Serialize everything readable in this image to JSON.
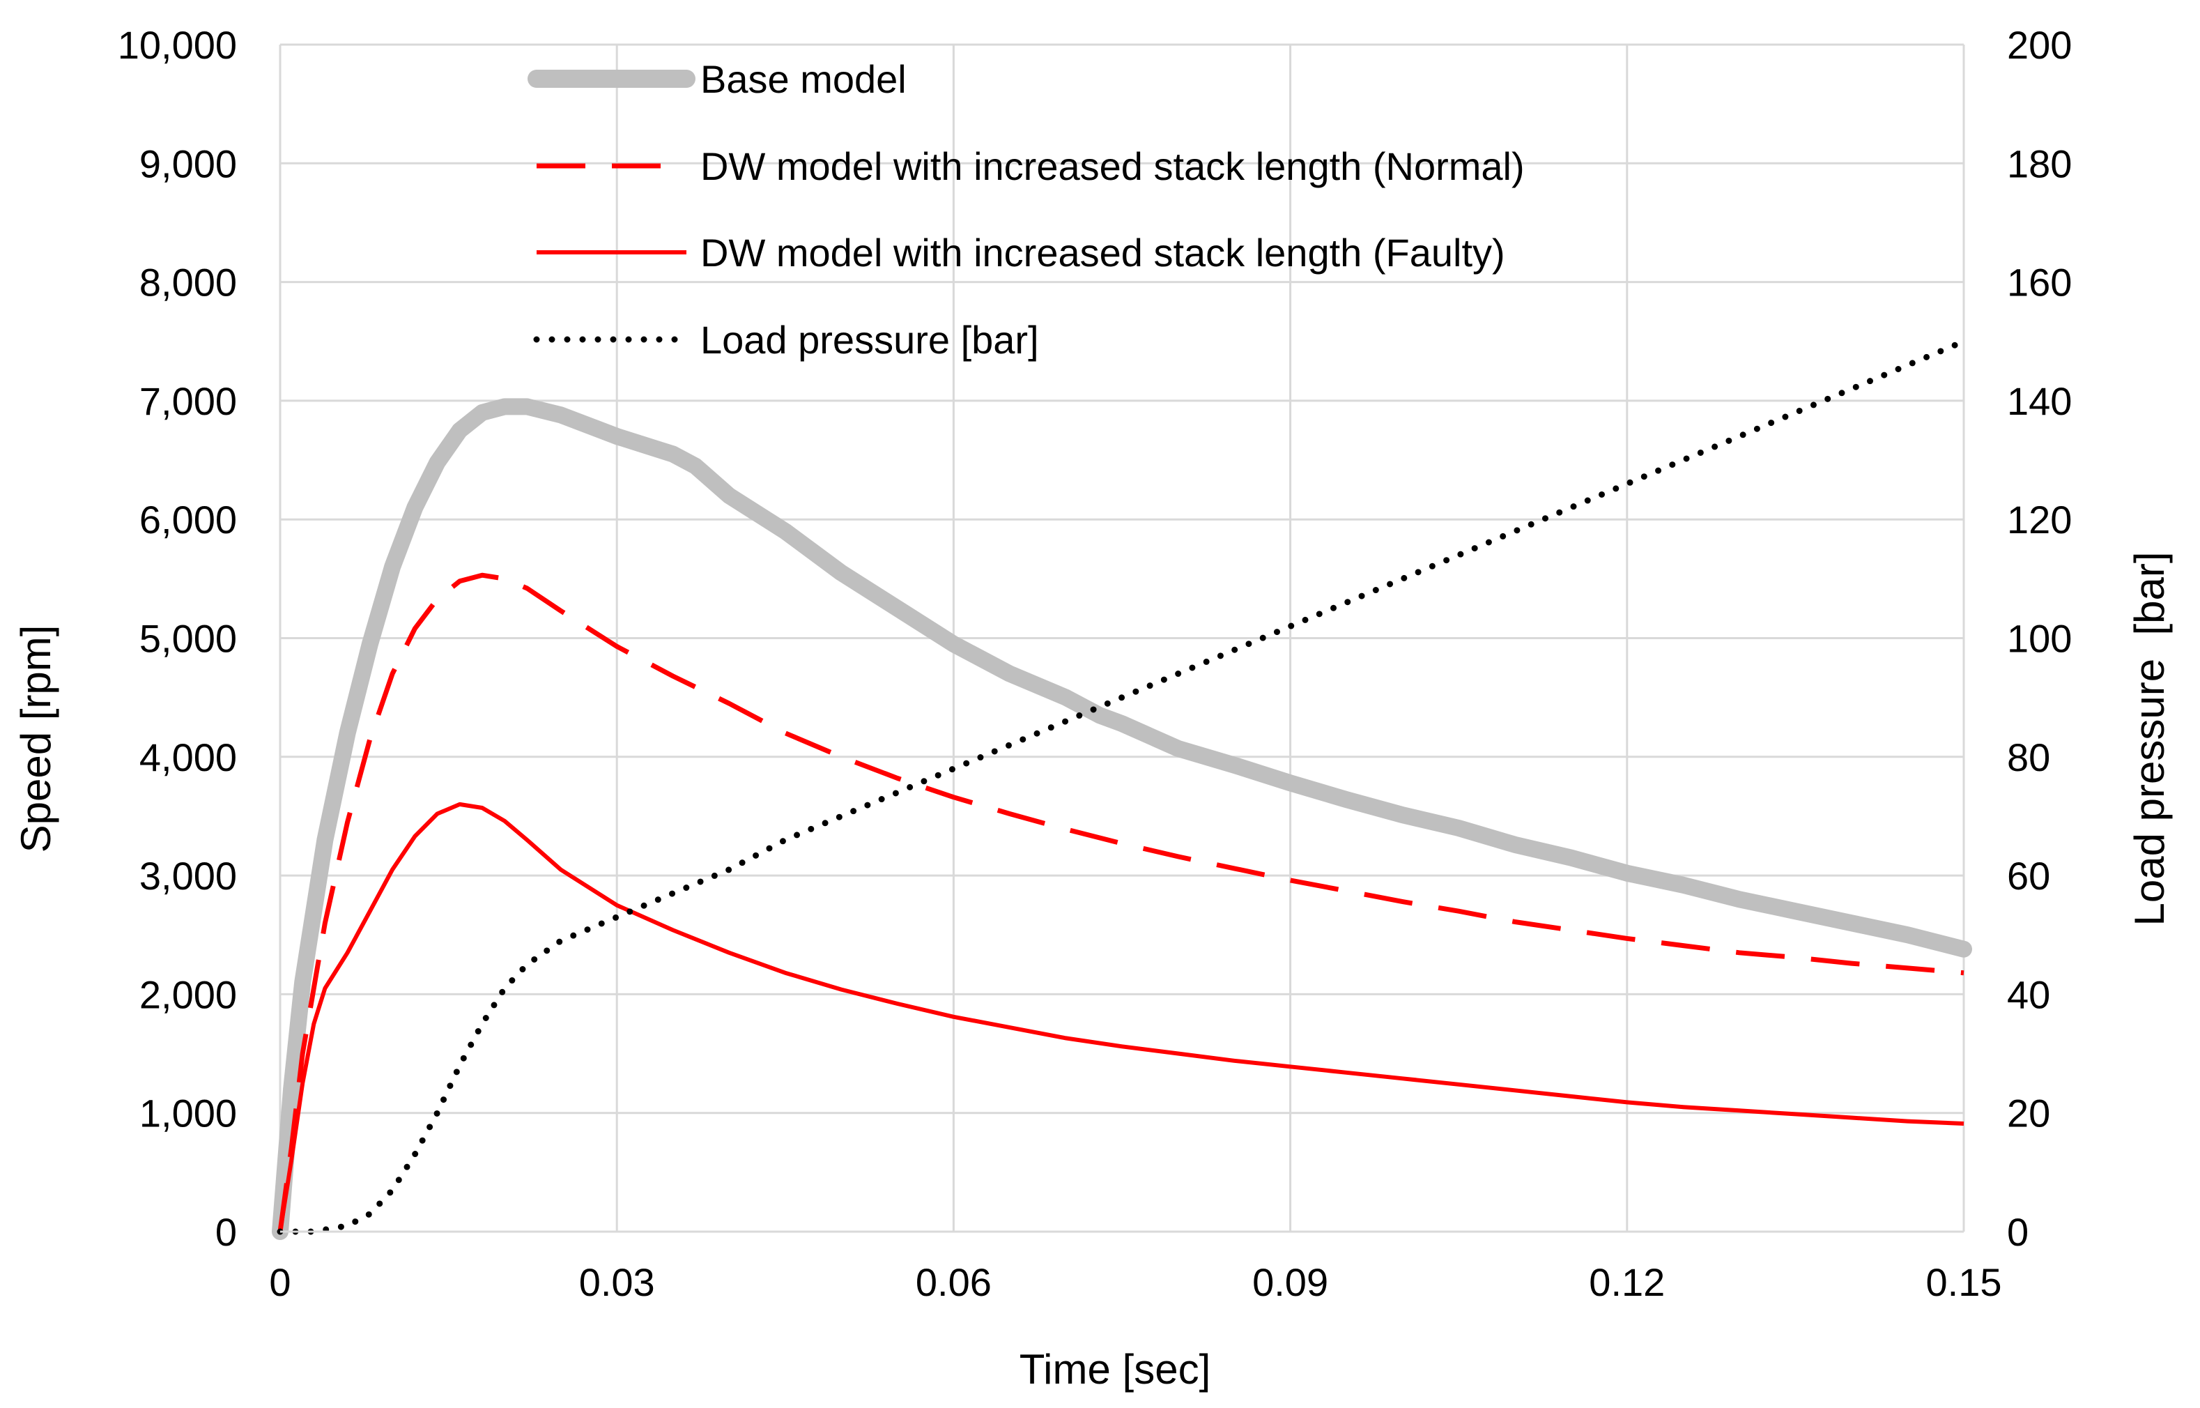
{
  "chart_data": {
    "type": "line",
    "title": "",
    "xlabel": "Time [sec]",
    "ylabel": "Speed [rpm]",
    "y2label": "Load pressure  [bar]",
    "xlim": [
      0,
      0.15
    ],
    "ylim": [
      0,
      10000
    ],
    "y2lim": [
      0,
      200
    ],
    "grid": true,
    "legend_position": "top-center",
    "x_ticks": [
      {
        "v": 0,
        "label": "0"
      },
      {
        "v": 0.03,
        "label": "0.03"
      },
      {
        "v": 0.06,
        "label": "0.06"
      },
      {
        "v": 0.09,
        "label": "0.09"
      },
      {
        "v": 0.12,
        "label": "0.12"
      },
      {
        "v": 0.15,
        "label": "0.15"
      }
    ],
    "y_ticks": [
      {
        "v": 0,
        "label": "0"
      },
      {
        "v": 1000,
        "label": "1,000"
      },
      {
        "v": 2000,
        "label": "2,000"
      },
      {
        "v": 3000,
        "label": "3,000"
      },
      {
        "v": 4000,
        "label": "4,000"
      },
      {
        "v": 5000,
        "label": "5,000"
      },
      {
        "v": 6000,
        "label": "6,000"
      },
      {
        "v": 7000,
        "label": "7,000"
      },
      {
        "v": 8000,
        "label": "8,000"
      },
      {
        "v": 9000,
        "label": "9,000"
      },
      {
        "v": 10000,
        "label": "10,000"
      }
    ],
    "y2_ticks": [
      {
        "v": 0,
        "label": "0"
      },
      {
        "v": 20,
        "label": "20"
      },
      {
        "v": 40,
        "label": "40"
      },
      {
        "v": 60,
        "label": "60"
      },
      {
        "v": 80,
        "label": "80"
      },
      {
        "v": 100,
        "label": "100"
      },
      {
        "v": 120,
        "label": "120"
      },
      {
        "v": 140,
        "label": "140"
      },
      {
        "v": 160,
        "label": "160"
      },
      {
        "v": 180,
        "label": "180"
      },
      {
        "v": 200,
        "label": "200"
      }
    ],
    "series": [
      {
        "name": "Base model",
        "axis": "left",
        "color": "#bfbfbf",
        "style": "solid-thick",
        "x": [
          0,
          0.001,
          0.002,
          0.004,
          0.006,
          0.008,
          0.01,
          0.012,
          0.014,
          0.016,
          0.018,
          0.02,
          0.022,
          0.025,
          0.03,
          0.035,
          0.037,
          0.04,
          0.045,
          0.05,
          0.055,
          0.06,
          0.065,
          0.07,
          0.073,
          0.075,
          0.08,
          0.085,
          0.09,
          0.095,
          0.1,
          0.105,
          0.11,
          0.115,
          0.12,
          0.125,
          0.13,
          0.135,
          0.14,
          0.145,
          0.15
        ],
        "values": [
          0,
          1200,
          2100,
          3300,
          4200,
          4950,
          5600,
          6100,
          6480,
          6750,
          6900,
          6950,
          6950,
          6880,
          6700,
          6550,
          6450,
          6200,
          5900,
          5550,
          5250,
          4950,
          4700,
          4500,
          4350,
          4280,
          4070,
          3930,
          3780,
          3640,
          3510,
          3400,
          3260,
          3150,
          3020,
          2920,
          2800,
          2700,
          2600,
          2500,
          2380
        ]
      },
      {
        "name": "DW model with increased stack length (Normal)",
        "axis": "left",
        "color": "#ff0000",
        "style": "dashed",
        "x": [
          0,
          0.001,
          0.002,
          0.004,
          0.006,
          0.008,
          0.01,
          0.012,
          0.014,
          0.016,
          0.018,
          0.02,
          0.022,
          0.025,
          0.03,
          0.035,
          0.04,
          0.045,
          0.05,
          0.055,
          0.06,
          0.065,
          0.07,
          0.075,
          0.08,
          0.085,
          0.09,
          0.095,
          0.1,
          0.105,
          0.11,
          0.115,
          0.12,
          0.125,
          0.13,
          0.135,
          0.14,
          0.145,
          0.15
        ],
        "values": [
          0,
          700,
          1500,
          2600,
          3450,
          4150,
          4700,
          5080,
          5330,
          5480,
          5530,
          5500,
          5420,
          5230,
          4930,
          4680,
          4450,
          4200,
          4000,
          3820,
          3660,
          3520,
          3390,
          3270,
          3160,
          3060,
          2960,
          2870,
          2780,
          2700,
          2610,
          2540,
          2470,
          2410,
          2350,
          2310,
          2260,
          2220,
          2180
        ]
      },
      {
        "name": "DW model with increased stack length (Faulty)",
        "axis": "left",
        "color": "#ff0000",
        "style": "solid",
        "x": [
          0,
          0.001,
          0.002,
          0.003,
          0.004,
          0.006,
          0.008,
          0.01,
          0.012,
          0.014,
          0.016,
          0.018,
          0.02,
          0.022,
          0.025,
          0.03,
          0.035,
          0.04,
          0.045,
          0.05,
          0.055,
          0.06,
          0.065,
          0.07,
          0.075,
          0.08,
          0.085,
          0.09,
          0.095,
          0.1,
          0.105,
          0.11,
          0.115,
          0.12,
          0.125,
          0.13,
          0.135,
          0.14,
          0.145,
          0.15
        ],
        "values": [
          0,
          600,
          1250,
          1750,
          2050,
          2350,
          2700,
          3050,
          3330,
          3520,
          3600,
          3570,
          3460,
          3300,
          3050,
          2750,
          2540,
          2350,
          2180,
          2040,
          1920,
          1810,
          1720,
          1630,
          1560,
          1500,
          1440,
          1390,
          1340,
          1290,
          1240,
          1190,
          1140,
          1090,
          1050,
          1020,
          990,
          960,
          930,
          910
        ]
      },
      {
        "name": "Load pressure [bar]",
        "axis": "right",
        "color": "#000000",
        "style": "dotted",
        "x": [
          0,
          0.003,
          0.006,
          0.008,
          0.01,
          0.012,
          0.014,
          0.016,
          0.018,
          0.02,
          0.022,
          0.025,
          0.03,
          0.035,
          0.04,
          0.045,
          0.05,
          0.055,
          0.06,
          0.065,
          0.07,
          0.075,
          0.08,
          0.085,
          0.09,
          0.095,
          0.1,
          0.105,
          0.11,
          0.115,
          0.12,
          0.125,
          0.13,
          0.135,
          0.14,
          0.145,
          0.15
        ],
        "values": [
          0,
          0,
          1,
          3,
          7,
          13,
          20,
          28,
          35,
          41,
          45,
          49,
          53,
          57,
          61,
          66,
          70,
          74,
          78,
          82,
          86,
          90,
          94,
          98,
          102,
          106,
          110,
          114,
          118,
          122,
          126,
          130,
          134,
          138,
          142,
          146,
          150
        ]
      }
    ]
  }
}
